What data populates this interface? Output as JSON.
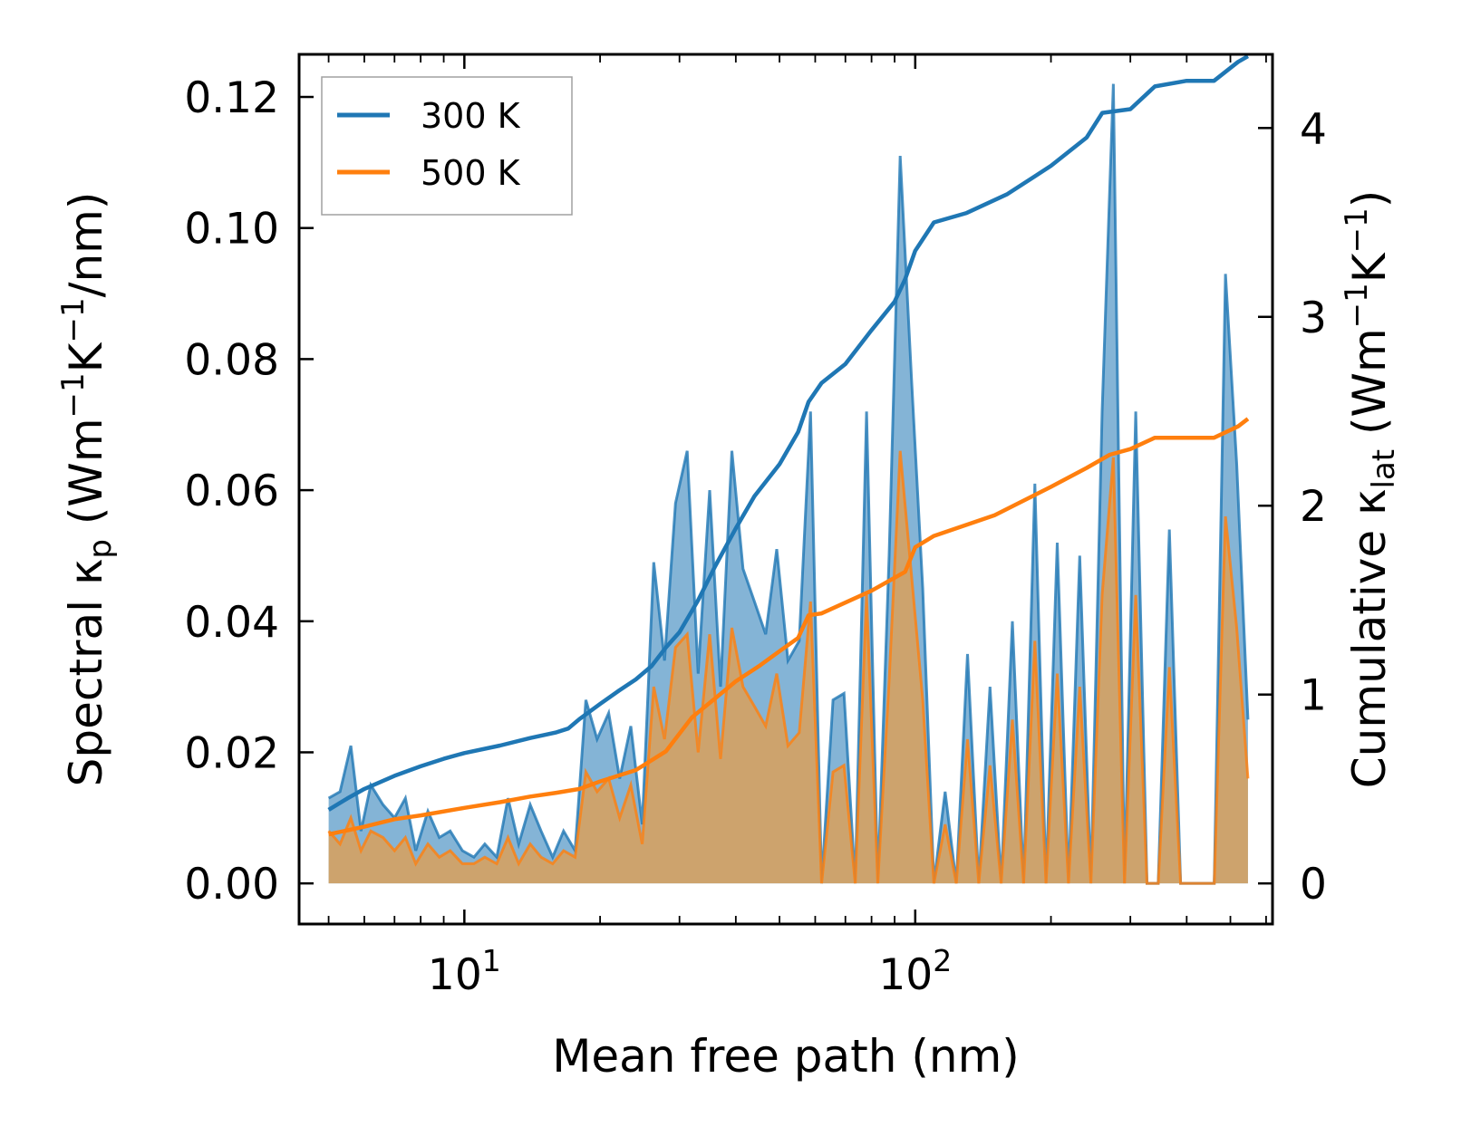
{
  "chart_data": {
    "type": "line",
    "title": "",
    "xlabel": "Mean free path (nm)",
    "xscale": "log",
    "xlim": [
      4.3,
      620
    ],
    "xticks": [
      {
        "value": 10,
        "base": "10",
        "exp": "1"
      },
      {
        "value": 100,
        "base": "10",
        "exp": "2"
      }
    ],
    "ylabel": {
      "prefix": "Spectral κ",
      "subscript": "p",
      "unit_open": " (Wm",
      "unit_exp1": "−1",
      "unit_mid": "K",
      "unit_exp2": "−1",
      "unit_close": "/nm)"
    },
    "ylim": [
      -0.0062,
      0.1265
    ],
    "yticks": [
      "0.00",
      "0.02",
      "0.04",
      "0.06",
      "0.08",
      "0.10",
      "0.12"
    ],
    "y2label": {
      "prefix": "Cumulative κ",
      "subscript": "lat",
      "unit_open": " (Wm",
      "unit_exp1": "−1",
      "unit_mid": "K",
      "unit_exp2": "−1",
      "unit_close": ")"
    },
    "y2lim": [
      -0.215,
      4.39
    ],
    "y2ticks": [
      "0",
      "1",
      "2",
      "3",
      "4"
    ],
    "legend": {
      "position": "top-left",
      "entries": [
        "300 K",
        "500 K"
      ]
    },
    "colors": {
      "s300": "#1f77b4",
      "s500": "#ff7f0e",
      "fill300": "#1f77b4",
      "fill500": "#d9a05a"
    },
    "series": [
      {
        "name": "300 K",
        "spectral_x": [
          5.0,
          5.3,
          5.6,
          5.9,
          6.2,
          6.6,
          7.0,
          7.4,
          7.8,
          8.3,
          8.8,
          9.3,
          9.9,
          10.5,
          11.1,
          11.8,
          12.5,
          13.2,
          14.0,
          14.8,
          15.7,
          16.6,
          17.6,
          18.6,
          19.7,
          20.9,
          22.1,
          23.4,
          24.8,
          26.3,
          27.8,
          29.4,
          31.2,
          33.0,
          35.0,
          37.0,
          39.2,
          41.5,
          44.0,
          46.6,
          49.3,
          52.2,
          55.3,
          58.6,
          62.0,
          65.7,
          69.5,
          73.6,
          78.0,
          82.6,
          87.5,
          92.6,
          98.1,
          103.9,
          110.0,
          116.5,
          123.3,
          130.6,
          138.3,
          146.5,
          155.1,
          164.2,
          173.9,
          184.2,
          195.0,
          206.5,
          218.7,
          231.6,
          245.2,
          259.7,
          275.0,
          291.2,
          308.4,
          326.5,
          345.8,
          366.2,
          387.8,
          410.6,
          434.8,
          460.5,
          487.6,
          516.4,
          546.8
        ],
        "spectral_y": [
          0.013,
          0.014,
          0.021,
          0.008,
          0.015,
          0.012,
          0.01,
          0.013,
          0.005,
          0.011,
          0.007,
          0.008,
          0.005,
          0.004,
          0.006,
          0.004,
          0.013,
          0.006,
          0.012,
          0.008,
          0.004,
          0.008,
          0.005,
          0.028,
          0.022,
          0.026,
          0.016,
          0.024,
          0.009,
          0.049,
          0.034,
          0.058,
          0.066,
          0.032,
          0.06,
          0.03,
          0.066,
          0.048,
          0.043,
          0.038,
          0.051,
          0.034,
          0.037,
          0.072,
          0.0,
          0.028,
          0.029,
          0.0,
          0.072,
          0.0,
          0.05,
          0.111,
          0.077,
          0.045,
          0.0,
          0.014,
          0.0,
          0.035,
          0.0,
          0.03,
          0.0,
          0.04,
          0.0,
          0.061,
          0.0,
          0.052,
          0.0,
          0.05,
          0.0,
          0.072,
          0.122,
          0.0,
          0.072,
          0.0,
          0.0,
          0.054,
          0.0,
          0.0,
          0.0,
          0.0,
          0.093,
          0.064,
          0.025
        ],
        "cumulative_x": [
          5.0,
          5.5,
          6.0,
          7.0,
          8.0,
          9.0,
          10.0,
          12.0,
          14.0,
          16.0,
          17.0,
          18.0,
          20.0,
          22.0,
          24.0,
          26.0,
          28.0,
          30.0,
          33.0,
          36.0,
          40.0,
          44.0,
          50.0,
          55.0,
          58.0,
          62.0,
          70.0,
          80.0,
          90.0,
          95.0,
          100.0,
          110.0,
          130.0,
          160.0,
          200.0,
          240.0,
          260.0,
          300.0,
          340.0,
          400.0,
          460.0,
          520.0,
          547.0
        ],
        "cumulative_y": [
          0.39,
          0.45,
          0.5,
          0.57,
          0.62,
          0.66,
          0.69,
          0.73,
          0.77,
          0.8,
          0.82,
          0.87,
          0.95,
          1.02,
          1.08,
          1.15,
          1.25,
          1.33,
          1.5,
          1.68,
          1.88,
          2.05,
          2.22,
          2.39,
          2.55,
          2.65,
          2.75,
          2.93,
          3.08,
          3.2,
          3.35,
          3.5,
          3.55,
          3.65,
          3.8,
          3.95,
          4.08,
          4.1,
          4.22,
          4.25,
          4.25,
          4.35,
          4.38
        ]
      },
      {
        "name": "500 K",
        "spectral_x": [
          5.0,
          5.3,
          5.6,
          5.9,
          6.2,
          6.6,
          7.0,
          7.4,
          7.8,
          8.3,
          8.8,
          9.3,
          9.9,
          10.5,
          11.1,
          11.8,
          12.5,
          13.2,
          14.0,
          14.8,
          15.7,
          16.6,
          17.6,
          18.6,
          19.7,
          20.9,
          22.1,
          23.4,
          24.8,
          26.3,
          27.8,
          29.4,
          31.2,
          33.0,
          35.0,
          37.0,
          39.2,
          41.5,
          44.0,
          46.6,
          49.3,
          52.2,
          55.3,
          58.6,
          62.0,
          65.7,
          69.5,
          73.6,
          78.0,
          82.6,
          87.5,
          92.6,
          98.1,
          103.9,
          110.0,
          116.5,
          123.3,
          130.6,
          138.3,
          146.5,
          155.1,
          164.2,
          173.9,
          184.2,
          195.0,
          206.5,
          218.7,
          231.6,
          245.2,
          259.7,
          275.0,
          291.2,
          308.4,
          326.5,
          345.8,
          366.2,
          387.8,
          410.6,
          434.8,
          460.5,
          487.6,
          516.4,
          546.8
        ],
        "spectral_y": [
          0.008,
          0.006,
          0.01,
          0.005,
          0.008,
          0.007,
          0.005,
          0.007,
          0.003,
          0.006,
          0.004,
          0.005,
          0.003,
          0.003,
          0.004,
          0.003,
          0.007,
          0.003,
          0.006,
          0.004,
          0.003,
          0.005,
          0.004,
          0.017,
          0.014,
          0.016,
          0.01,
          0.015,
          0.006,
          0.03,
          0.022,
          0.036,
          0.038,
          0.02,
          0.038,
          0.019,
          0.039,
          0.03,
          0.027,
          0.024,
          0.032,
          0.021,
          0.023,
          0.043,
          0.0,
          0.017,
          0.018,
          0.0,
          0.044,
          0.0,
          0.031,
          0.066,
          0.047,
          0.028,
          0.0,
          0.009,
          0.0,
          0.022,
          0.0,
          0.018,
          0.0,
          0.025,
          0.0,
          0.037,
          0.0,
          0.032,
          0.0,
          0.03,
          0.0,
          0.044,
          0.065,
          0.0,
          0.044,
          0.0,
          0.0,
          0.033,
          0.0,
          0.0,
          0.0,
          0.0,
          0.056,
          0.039,
          0.016
        ],
        "cumulative_x": [
          5.0,
          6.0,
          7.0,
          8.0,
          10.0,
          12.0,
          14.0,
          16.0,
          18.0,
          20.0,
          24.0,
          28.0,
          32.0,
          36.0,
          40.0,
          45.0,
          50.0,
          55.0,
          58.0,
          62.0,
          80.0,
          95.0,
          100.0,
          110.0,
          150.0,
          200.0,
          240.0,
          270.0,
          300.0,
          340.0,
          400.0,
          460.0,
          520.0,
          547.0
        ],
        "cumulative_y": [
          0.26,
          0.3,
          0.34,
          0.36,
          0.4,
          0.43,
          0.46,
          0.48,
          0.5,
          0.54,
          0.6,
          0.7,
          0.88,
          0.98,
          1.07,
          1.15,
          1.23,
          1.3,
          1.42,
          1.43,
          1.55,
          1.65,
          1.78,
          1.84,
          1.95,
          2.1,
          2.2,
          2.27,
          2.3,
          2.36,
          2.36,
          2.36,
          2.42,
          2.46
        ]
      }
    ]
  }
}
